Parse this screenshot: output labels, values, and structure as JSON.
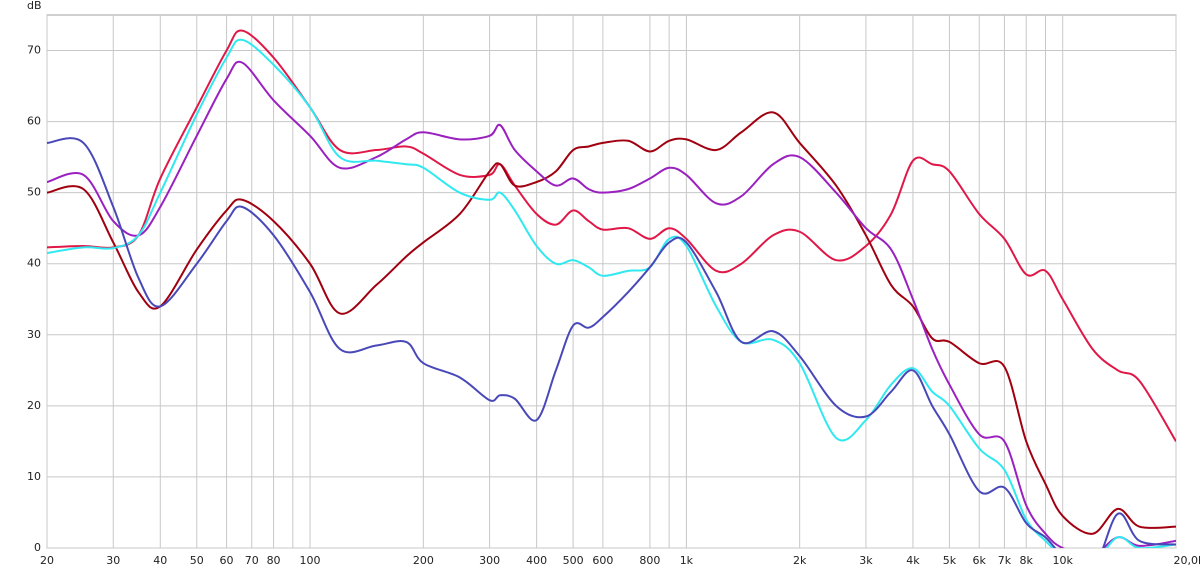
{
  "chart_data": {
    "type": "line",
    "y_label": "dB",
    "xscale": "log",
    "grid": true,
    "x": [
      20,
      25,
      30,
      35,
      40,
      50,
      60,
      66,
      80,
      100,
      120,
      150,
      180,
      200,
      250,
      300,
      320,
      350,
      400,
      450,
      500,
      550,
      600,
      700,
      800,
      900,
      1000,
      1200,
      1400,
      1700,
      2000,
      2500,
      3000,
      3500,
      4000,
      4500,
      5000,
      6000,
      7000,
      8000,
      9000,
      10000,
      12000,
      14000,
      16000,
      20000
    ],
    "series": [
      {
        "color": "#e01848",
        "values": [
          42.3,
          42.5,
          42.3,
          44,
          52,
          62,
          70,
          72.8,
          69,
          62,
          56,
          56,
          56.5,
          55.5,
          52.5,
          52.5,
          54,
          51,
          47,
          45.5,
          47.5,
          46,
          44.8,
          45,
          43.5,
          45,
          43.5,
          39,
          40,
          44,
          44.5,
          40.5,
          42.5,
          47,
          54.5,
          54,
          53,
          47,
          43.5,
          38.5,
          39,
          35,
          28,
          25,
          23.5,
          15
        ]
      },
      {
        "color": "#a00010",
        "values": [
          50,
          50.5,
          43,
          36,
          34,
          42,
          47.5,
          49,
          46,
          40,
          33,
          37,
          41,
          43,
          47,
          53,
          54,
          51,
          51.5,
          53,
          56,
          56.5,
          57,
          57.3,
          55.8,
          57.3,
          57.5,
          56,
          58.5,
          61.3,
          57,
          51,
          44,
          37,
          34,
          29.5,
          29,
          26,
          25.5,
          15,
          9,
          4.5,
          2,
          5.5,
          3,
          3
        ]
      },
      {
        "color": "#9a20c0",
        "values": [
          51.5,
          52.5,
          46,
          44,
          48,
          58,
          66,
          68.3,
          63,
          58,
          53.5,
          55,
          57.5,
          58.5,
          57.5,
          58,
          59.5,
          56,
          53,
          51,
          52,
          50.5,
          50,
          50.5,
          52,
          53.5,
          52.5,
          48.5,
          49.5,
          54,
          55,
          50,
          45,
          42,
          35,
          28,
          23,
          16,
          15,
          6,
          2,
          0,
          -1,
          1.5,
          0.3,
          1
        ]
      },
      {
        "color": "#30e8f0",
        "values": [
          41.5,
          42.3,
          42.2,
          44,
          50,
          61,
          69,
          71.5,
          68,
          62,
          55,
          54.5,
          54,
          53.5,
          50,
          49,
          50,
          47.5,
          42.5,
          40,
          40.5,
          39.5,
          38.3,
          39,
          39.5,
          43.5,
          42.5,
          34,
          29,
          29.3,
          26,
          15.5,
          18,
          23,
          25.3,
          22,
          20,
          14,
          11,
          4,
          1,
          -1,
          -2,
          1.5,
          0,
          0.5
        ]
      },
      {
        "color": "#4848b8",
        "values": [
          57,
          57,
          48,
          38,
          34,
          40,
          46,
          48,
          44,
          36,
          28,
          28.5,
          29,
          26,
          24,
          20.8,
          21.5,
          21,
          18,
          25,
          31.3,
          31,
          32.5,
          36,
          39.5,
          43,
          43,
          36,
          29,
          30.5,
          27,
          20,
          18.5,
          22,
          25,
          20,
          16,
          8,
          8.5,
          3.5,
          1.5,
          -1,
          -3,
          4.8,
          1,
          0.5
        ]
      }
    ],
    "xlim": [
      20,
      20000
    ],
    "xticks": [
      20,
      30,
      40,
      50,
      60,
      70,
      80,
      {
        "value": 90,
        "label": null
      },
      100,
      200,
      300,
      400,
      500,
      600,
      800,
      {
        "value": 900,
        "label": null
      },
      {
        "value": 1000,
        "label": "1k"
      },
      {
        "value": 2000,
        "label": "2k"
      },
      {
        "value": 3000,
        "label": "3k"
      },
      {
        "value": 4000,
        "label": "4k"
      },
      {
        "value": 5000,
        "label": "5k"
      },
      {
        "value": 6000,
        "label": "6k"
      },
      {
        "value": 7000,
        "label": "7k"
      },
      {
        "value": 8000,
        "label": "8k"
      },
      {
        "value": 9000,
        "label": null
      },
      {
        "value": 10000,
        "label": "10k"
      },
      {
        "value": 20000,
        "label": "20,0kHz"
      }
    ],
    "ylim": [
      0,
      75
    ],
    "yticks": [
      0,
      10,
      20,
      30,
      40,
      50,
      60,
      70
    ]
  }
}
